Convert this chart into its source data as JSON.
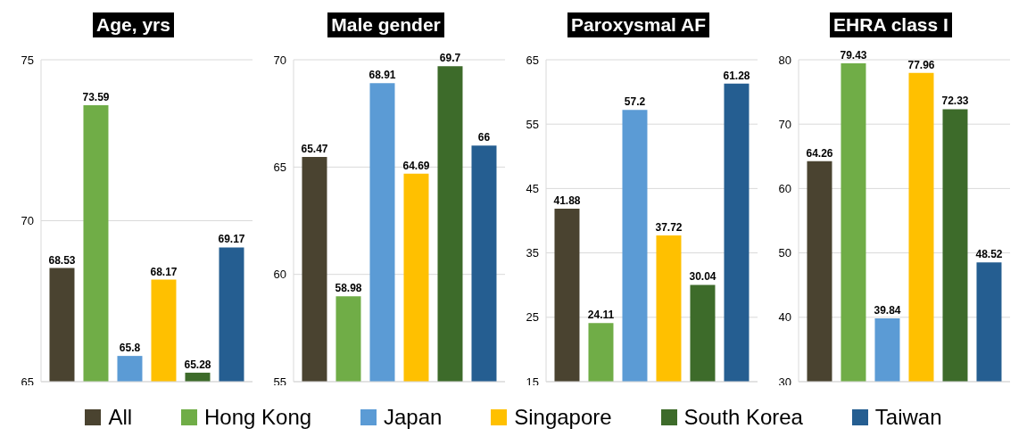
{
  "chart_data": [
    {
      "type": "bar",
      "title": "Age, yrs",
      "categories": [
        null
      ],
      "ylim": [
        65,
        75
      ],
      "yticks": [
        65,
        70,
        75
      ],
      "grid": "y",
      "tick_labels": "y",
      "data_labels": true,
      "legend": "bottom",
      "series": [
        {
          "name": "All",
          "color": "#4a4330",
          "values": [
            68.53
          ]
        },
        {
          "name": "Hong Kong",
          "color": "#70ad47",
          "values": [
            73.59
          ]
        },
        {
          "name": "Japan",
          "color": "#5b9bd5",
          "values": [
            65.8
          ]
        },
        {
          "name": "Singapore",
          "color": "#ffc000",
          "values": [
            68.17
          ]
        },
        {
          "name": "South Korea",
          "color": "#3d6b2a",
          "values": [
            65.28
          ]
        },
        {
          "name": "Taiwan",
          "color": "#255e91",
          "values": [
            69.17
          ]
        }
      ]
    },
    {
      "type": "bar",
      "title": "Male gender",
      "categories": [
        null
      ],
      "ylim": [
        55,
        70
      ],
      "yticks": [
        55,
        60,
        65,
        70
      ],
      "grid": "y",
      "tick_labels": "y",
      "data_labels": true,
      "series": [
        {
          "color": "#4a4330",
          "values": [
            65.47
          ]
        },
        {
          "color": "#70ad47",
          "values": [
            58.98
          ]
        },
        {
          "color": "#5b9bd5",
          "values": [
            68.91
          ]
        },
        {
          "color": "#ffc000",
          "values": [
            64.69
          ]
        },
        {
          "color": "#3d6b2a",
          "values": [
            69.7
          ]
        },
        {
          "color": "#255e91",
          "values": [
            66
          ]
        }
      ]
    },
    {
      "type": "bar",
      "title": "Paroxysmal AF",
      "categories": [
        null
      ],
      "ylim": [
        15,
        65
      ],
      "yticks": [
        15,
        25,
        35,
        45,
        55,
        65
      ],
      "grid": "y",
      "tick_labels": "y",
      "data_labels": true,
      "series": [
        {
          "color": "#4a4330",
          "values": [
            41.88
          ]
        },
        {
          "color": "#70ad47",
          "values": [
            24.11
          ]
        },
        {
          "color": "#5b9bd5",
          "values": [
            57.2
          ]
        },
        {
          "color": "#ffc000",
          "values": [
            37.72
          ]
        },
        {
          "color": "#3d6b2a",
          "values": [
            30.04
          ]
        },
        {
          "color": "#255e91",
          "values": [
            61.28
          ]
        }
      ]
    },
    {
      "type": "bar",
      "title": "EHRA class I",
      "categories": [
        null
      ],
      "ylim": [
        30,
        80
      ],
      "yticks": [
        30,
        40,
        50,
        60,
        70,
        80
      ],
      "grid": "y",
      "tick_labels": "y",
      "data_labels": true,
      "series": [
        {
          "color": "#4a4330",
          "values": [
            64.26
          ]
        },
        {
          "color": "#70ad47",
          "values": [
            79.43
          ]
        },
        {
          "color": "#5b9bd5",
          "values": [
            39.84
          ]
        },
        {
          "color": "#ffc000",
          "values": [
            77.96
          ]
        },
        {
          "color": "#3d6b2a",
          "values": [
            72.33
          ]
        },
        {
          "color": "#255e91",
          "values": [
            48.52
          ]
        }
      ]
    }
  ]
}
